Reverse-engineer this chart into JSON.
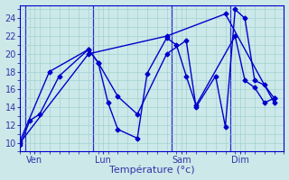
{
  "xlabel": "Température (°c)",
  "background_color": "#cce8e8",
  "grid_color": "#99cccc",
  "line_color": "#0000cc",
  "tick_color": "#3333aa",
  "xlim": [
    0,
    27
  ],
  "ylim": [
    9.5,
    25.5
  ],
  "yticks": [
    10,
    12,
    14,
    16,
    18,
    20,
    22,
    24
  ],
  "day_labels": [
    "Ven",
    "Lun",
    "Sam",
    "Dim"
  ],
  "day_positions": [
    1.5,
    8.5,
    16.5,
    22.5
  ],
  "vline_positions": [
    0.5,
    7.5,
    15.5,
    21.5
  ],
  "series1_x": [
    0,
    1,
    2,
    4,
    7,
    8,
    9,
    10,
    12,
    13,
    15,
    16,
    17,
    18,
    22,
    23,
    24,
    25,
    26
  ],
  "series1_y": [
    9.7,
    12.5,
    13.2,
    17.5,
    20.5,
    19.0,
    14.5,
    11.5,
    10.5,
    17.8,
    21.8,
    21.0,
    17.5,
    14.2,
    22.0,
    17.0,
    16.2,
    14.5,
    15.0
  ],
  "series2_x": [
    0,
    3,
    7,
    8,
    10,
    12,
    15,
    17,
    18,
    20,
    21,
    22,
    23,
    24,
    25,
    26
  ],
  "series2_y": [
    10.2,
    18.0,
    20.5,
    19.0,
    15.2,
    13.2,
    20.0,
    21.5,
    14.0,
    17.5,
    11.8,
    25.0,
    24.0,
    17.0,
    16.5,
    15.0
  ],
  "series3_x": [
    0,
    7,
    15,
    21,
    26
  ],
  "series3_y": [
    10.0,
    20.0,
    22.0,
    24.5,
    14.5
  ],
  "xlabel_fontsize": 8,
  "tick_fontsize": 7,
  "linewidth": 1.0,
  "markersize": 2.5
}
